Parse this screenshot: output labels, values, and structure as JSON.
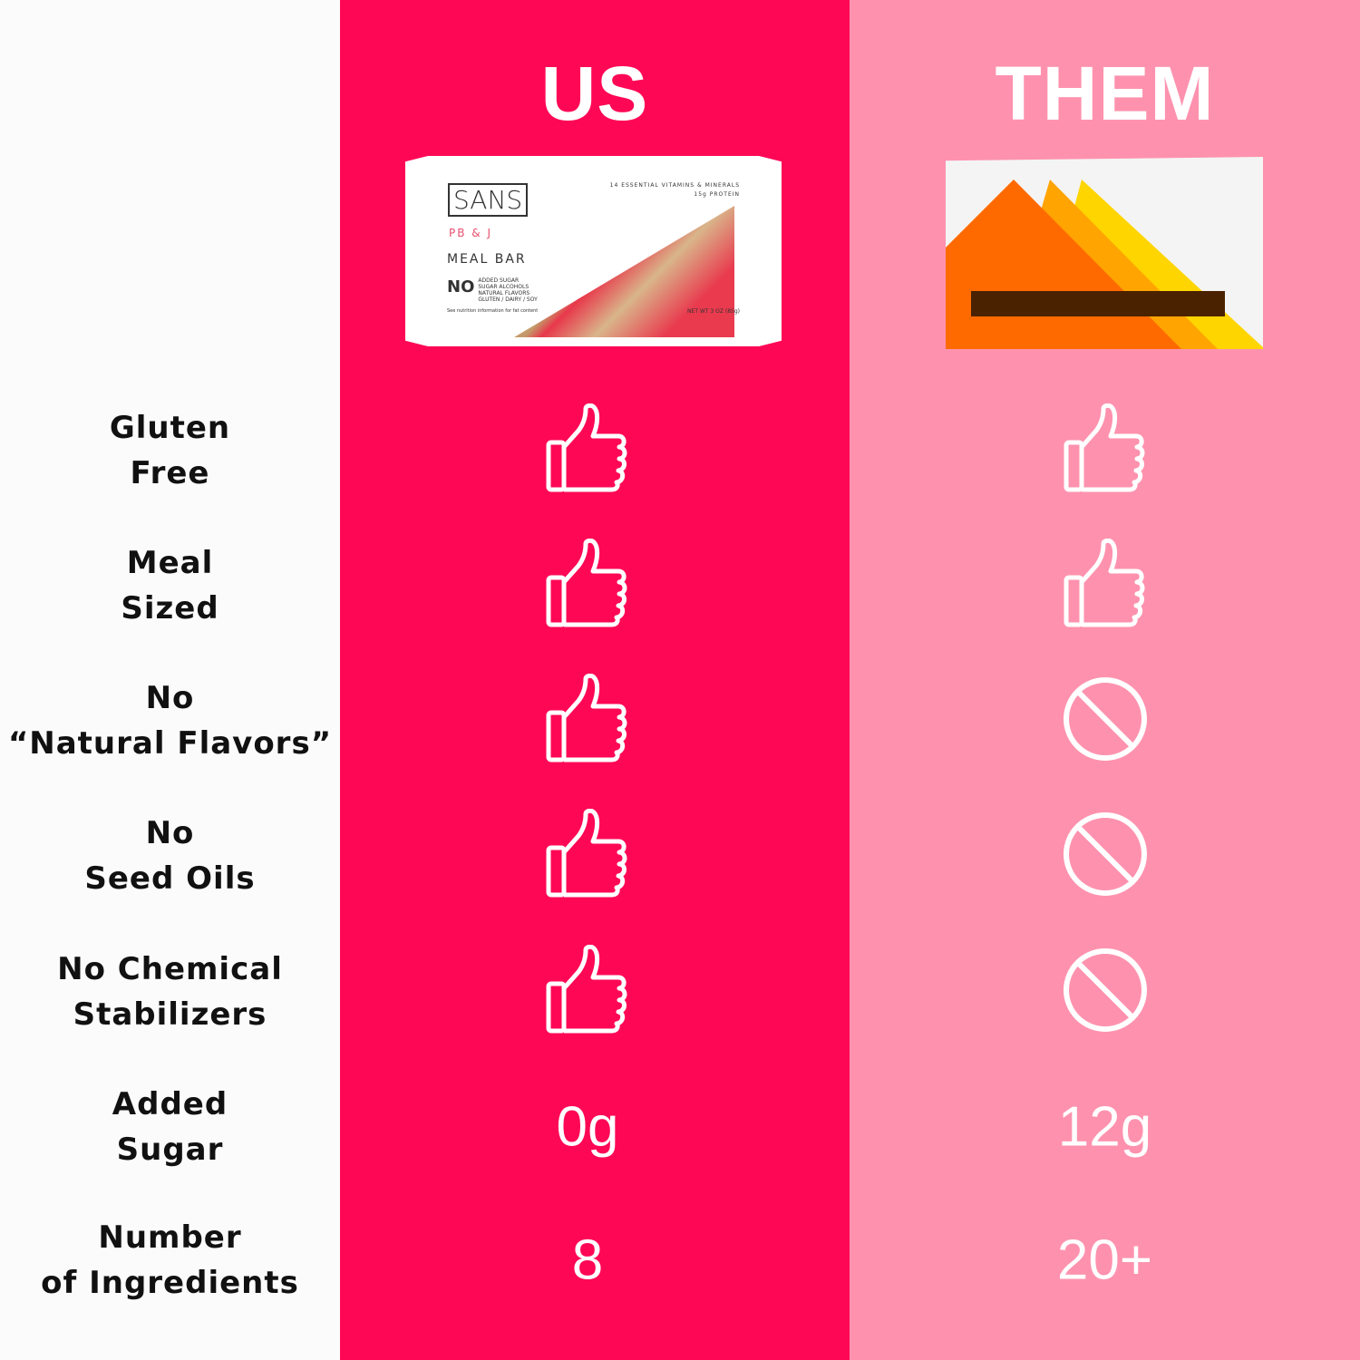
{
  "headers": {
    "us": "US",
    "them": "THEM"
  },
  "us_product": {
    "brand": "SANS",
    "flavor": "PB & J",
    "type": "MEAL BAR",
    "no_label": "NO",
    "no_items": "ADDED SUGAR\nSUGAR ALCOHOLS\nNATURAL FLAVORS\nGLUTEN / DAIRY / SOY",
    "claims": "14 ESSENTIAL VITAMINS & MINERALS\n15g PROTEIN",
    "fine_print": "See nutrition information for fat content",
    "net_weight": "NET WT 3 OZ (85g)"
  },
  "rows": [
    {
      "label": "Gluten\nFree",
      "us": "thumbs-up",
      "them": "thumbs-up"
    },
    {
      "label": "Meal\nSized",
      "us": "thumbs-up",
      "them": "thumbs-up"
    },
    {
      "label": "No\n“Natural Flavors”",
      "us": "thumbs-up",
      "them": "ban"
    },
    {
      "label": "No\nSeed Oils",
      "us": "thumbs-up",
      "them": "ban"
    },
    {
      "label": "No Chemical\nStabilizers",
      "us": "thumbs-up",
      "them": "ban"
    },
    {
      "label": "Added\nSugar",
      "us_value": "0g",
      "them_value": "12g"
    },
    {
      "label": "Number\nof Ingredients",
      "us_value": "8",
      "them_value": "20+"
    }
  ],
  "colors": {
    "us": "#fe0856",
    "them": "#fe92ae",
    "left": "#fbfbfb"
  }
}
